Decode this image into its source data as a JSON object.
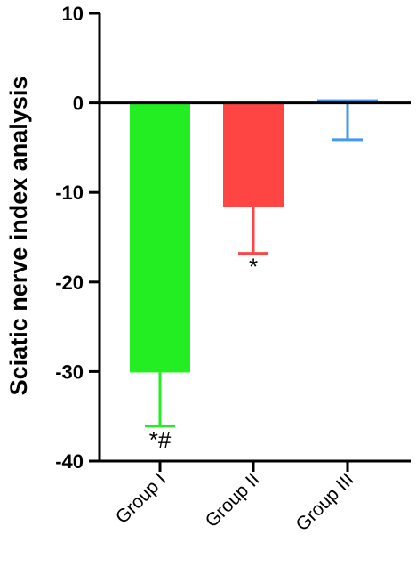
{
  "chart_data": {
    "type": "bar",
    "title": "",
    "xlabel": "",
    "ylabel": "Sciatic nerve index analysis",
    "ylim": [
      -40,
      10
    ],
    "yticks": [
      10,
      0,
      -10,
      -20,
      -30,
      -40
    ],
    "grid": false,
    "legend": "none",
    "categories": [
      "Group I",
      "Group II",
      "Group III"
    ],
    "values": [
      -30.1,
      -11.6,
      0.4
    ],
    "errors": [
      6.0,
      5.2,
      4.5
    ],
    "colors": [
      "#22ee22",
      "#ff4444",
      "#4499ee"
    ],
    "annotations": [
      "*#",
      "*",
      ""
    ]
  }
}
